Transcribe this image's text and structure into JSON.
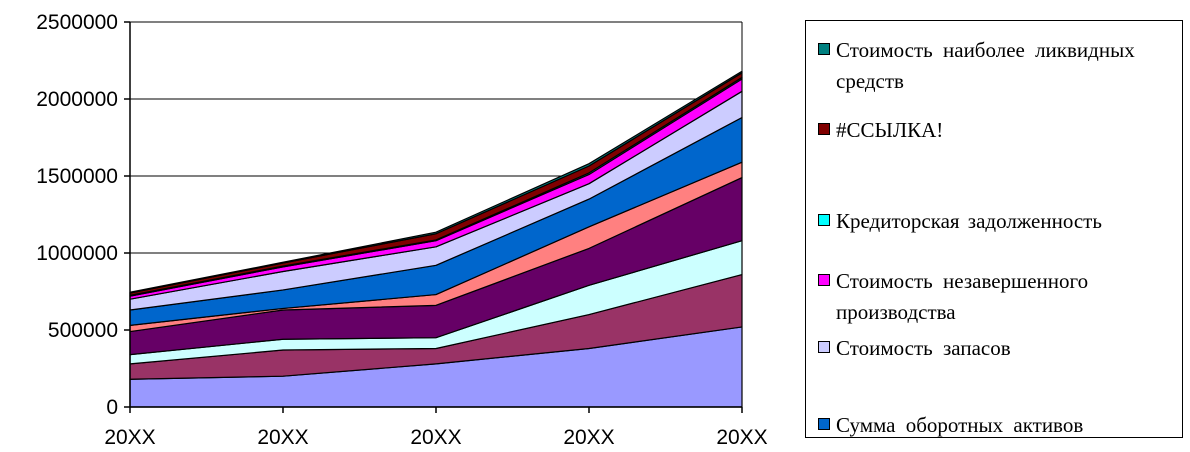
{
  "chart_data": {
    "type": "area",
    "stacked": true,
    "categories": [
      "20XX",
      "20XX",
      "20XX",
      "20XX",
      "20XX"
    ],
    "ylim": [
      0,
      2500000
    ],
    "yticks": [
      0,
      500000,
      1000000,
      1500000,
      2000000,
      2500000
    ],
    "grid": true,
    "legend_position": "right",
    "series": [
      {
        "name": "",
        "color": "#9999FF",
        "values": [
          180000,
          200000,
          280000,
          380000,
          520000
        ]
      },
      {
        "name": "",
        "color": "#993366",
        "values": [
          100000,
          170000,
          100000,
          220000,
          340000
        ]
      },
      {
        "name": "",
        "color": "#CCFFFF",
        "values": [
          60000,
          70000,
          70000,
          190000,
          220000
        ]
      },
      {
        "name": "",
        "color": "#660066",
        "values": [
          150000,
          190000,
          210000,
          240000,
          410000
        ]
      },
      {
        "name": "",
        "color": "#FF8080",
        "values": [
          40000,
          10000,
          70000,
          140000,
          100000
        ]
      },
      {
        "name": "Сумма оборотных активов",
        "color": "#0066CC",
        "values": [
          100000,
          120000,
          190000,
          180000,
          290000
        ]
      },
      {
        "name": "Стоимость запасов",
        "color": "#CCCCFF",
        "values": [
          70000,
          120000,
          120000,
          100000,
          170000
        ]
      },
      {
        "name": "Стоимость незавершенного производства",
        "color": "#FF00FF",
        "values": [
          20000,
          30000,
          40000,
          60000,
          80000
        ]
      },
      {
        "name": "Кредиторская задолженность",
        "color": "#00FFFF",
        "values": [
          5000,
          5000,
          5000,
          10000,
          10000
        ]
      },
      {
        "name": "#ССЫЛКА!",
        "color": "#800000",
        "values": [
          15000,
          20000,
          40000,
          45000,
          30000
        ]
      },
      {
        "name": "Стоимость наиболее ликвидных средств",
        "color": "#008080",
        "values": [
          5000,
          5000,
          10000,
          15000,
          10000
        ]
      }
    ]
  },
  "legend": {
    "items": [
      {
        "label": "Стоимость наиболее ликвидных средств",
        "color": "#008080"
      },
      {
        "label": "#ССЫЛКА!",
        "color": "#800000"
      },
      {
        "label": "Кредиторская задолженность",
        "color": "#00FFFF"
      },
      {
        "label": "Стоимость незавершенного производства",
        "color": "#FF00FF"
      },
      {
        "label": "Стоимость запасов",
        "color": "#CCCCFF"
      },
      {
        "label": "Сумма оборотных активов",
        "color": "#0066CC"
      }
    ]
  }
}
